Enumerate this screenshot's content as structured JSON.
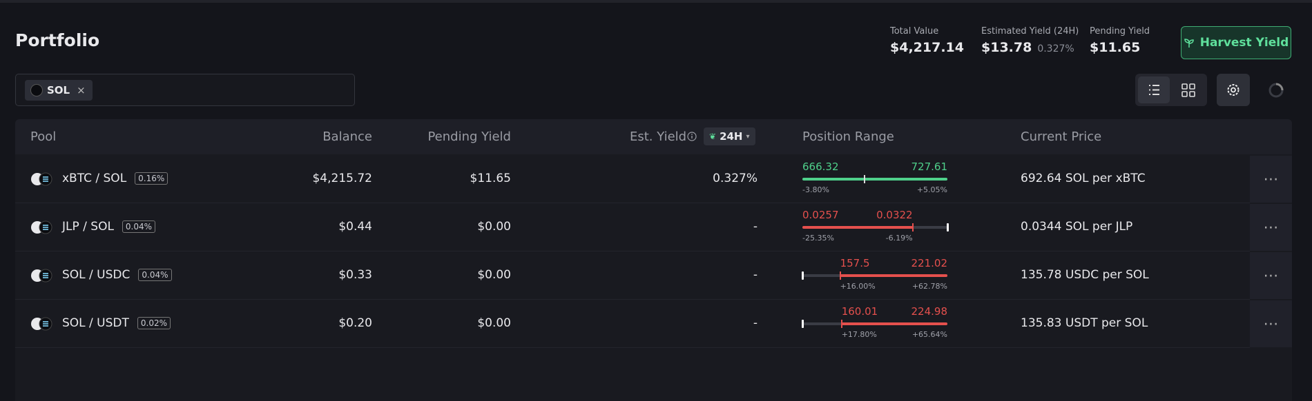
{
  "header": {
    "title": "Portfolio",
    "stats": [
      {
        "label": "Total Value",
        "value": "$4,217.14"
      },
      {
        "label": "Estimated Yield (24H)",
        "value": "$13.78",
        "sub": "0.327%"
      },
      {
        "label": "Pending Yield",
        "value": "$11.65"
      }
    ],
    "button": "Harvest Yield"
  },
  "filter": {
    "tags": [
      "SOL"
    ]
  },
  "table": {
    "columns": [
      "Pool",
      "Balance",
      "Pending Yield",
      "Est. Yield",
      "Position Range",
      "Current Price"
    ],
    "period": "24H",
    "rows": [
      {
        "pool": "xBTC / SOL",
        "fee": "0.16%",
        "balance": "$4,215.72",
        "pending_yield": "$11.65",
        "est_yield": "0.327%",
        "range_low": "666.32",
        "range_high": "727.61",
        "low_pct": "-3.80%",
        "high_pct": "+5.05%",
        "current_price": "692.64 SOL per xBTC"
      },
      {
        "pool": "JLP / SOL",
        "fee": "0.04%",
        "balance": "$0.44",
        "pending_yield": "$0.00",
        "est_yield": "-",
        "range_low": "0.0257",
        "range_high": "0.0322",
        "low_pct": "-25.35%",
        "high_pct": "-6.19%",
        "current_price": "0.0344 SOL per JLP"
      },
      {
        "pool": "SOL / USDC",
        "fee": "0.04%",
        "balance": "$0.33",
        "pending_yield": "$0.00",
        "est_yield": "-",
        "range_low": "157.5",
        "range_high": "221.02",
        "low_pct": "+16.00%",
        "high_pct": "+62.78%",
        "current_price": "135.78 USDC per SOL"
      },
      {
        "pool": "SOL / USDT",
        "fee": "0.02%",
        "balance": "$0.20",
        "pending_yield": "$0.00",
        "est_yield": "-",
        "range_low": "160.01",
        "range_high": "224.98",
        "low_pct": "+17.80%",
        "high_pct": "+65.64%",
        "current_price": "135.83 USDT per SOL"
      }
    ]
  }
}
